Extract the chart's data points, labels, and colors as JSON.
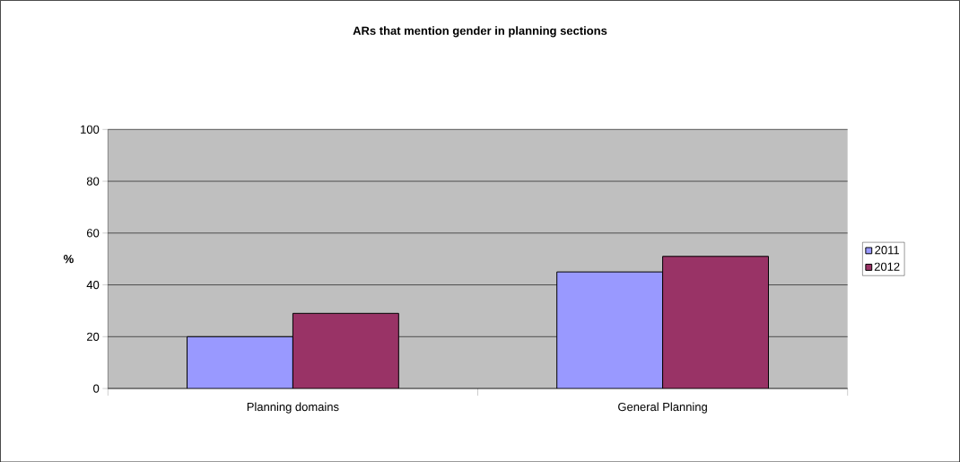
{
  "chart_data": {
    "type": "bar",
    "title": "ARs that mention gender in planning sections",
    "ylabel": "%",
    "categories": [
      "Planning domains",
      "General Planning"
    ],
    "series": [
      {
        "name": "2011",
        "color": "#9999ff",
        "values": [
          20,
          45
        ]
      },
      {
        "name": "2012",
        "color": "#993366",
        "values": [
          29,
          51
        ]
      }
    ],
    "ylim": [
      0,
      100
    ],
    "yticks": [
      0,
      20,
      40,
      60,
      80,
      100
    ],
    "grid": "y",
    "legend": "right"
  }
}
